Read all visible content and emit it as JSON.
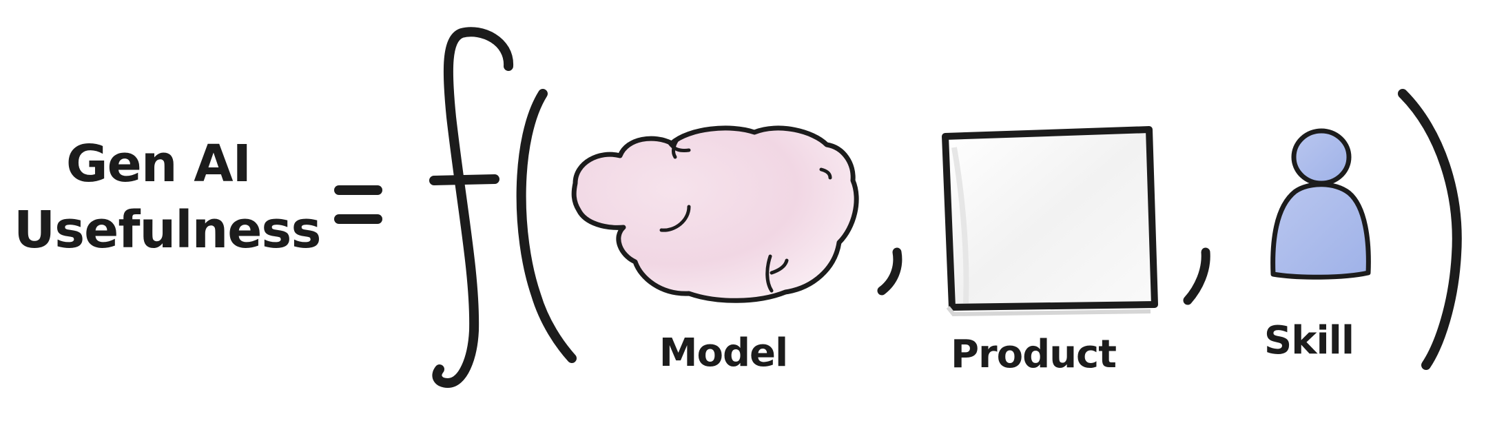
{
  "equation": {
    "lhs_line1": "Gen AI",
    "lhs_line2": "Usefulness",
    "operator": "=",
    "function_symbol": "f"
  },
  "arguments": [
    {
      "label": "Model",
      "icon": "brain-icon"
    },
    {
      "label": "Product",
      "icon": "product-box-icon"
    },
    {
      "label": "Skill",
      "icon": "person-icon"
    }
  ],
  "colors": {
    "ink": "#1c1c1c",
    "brain_fill": "#f2d9e6",
    "product_fill": "#f4f4f4",
    "person_fill": "#a9b9ec"
  }
}
